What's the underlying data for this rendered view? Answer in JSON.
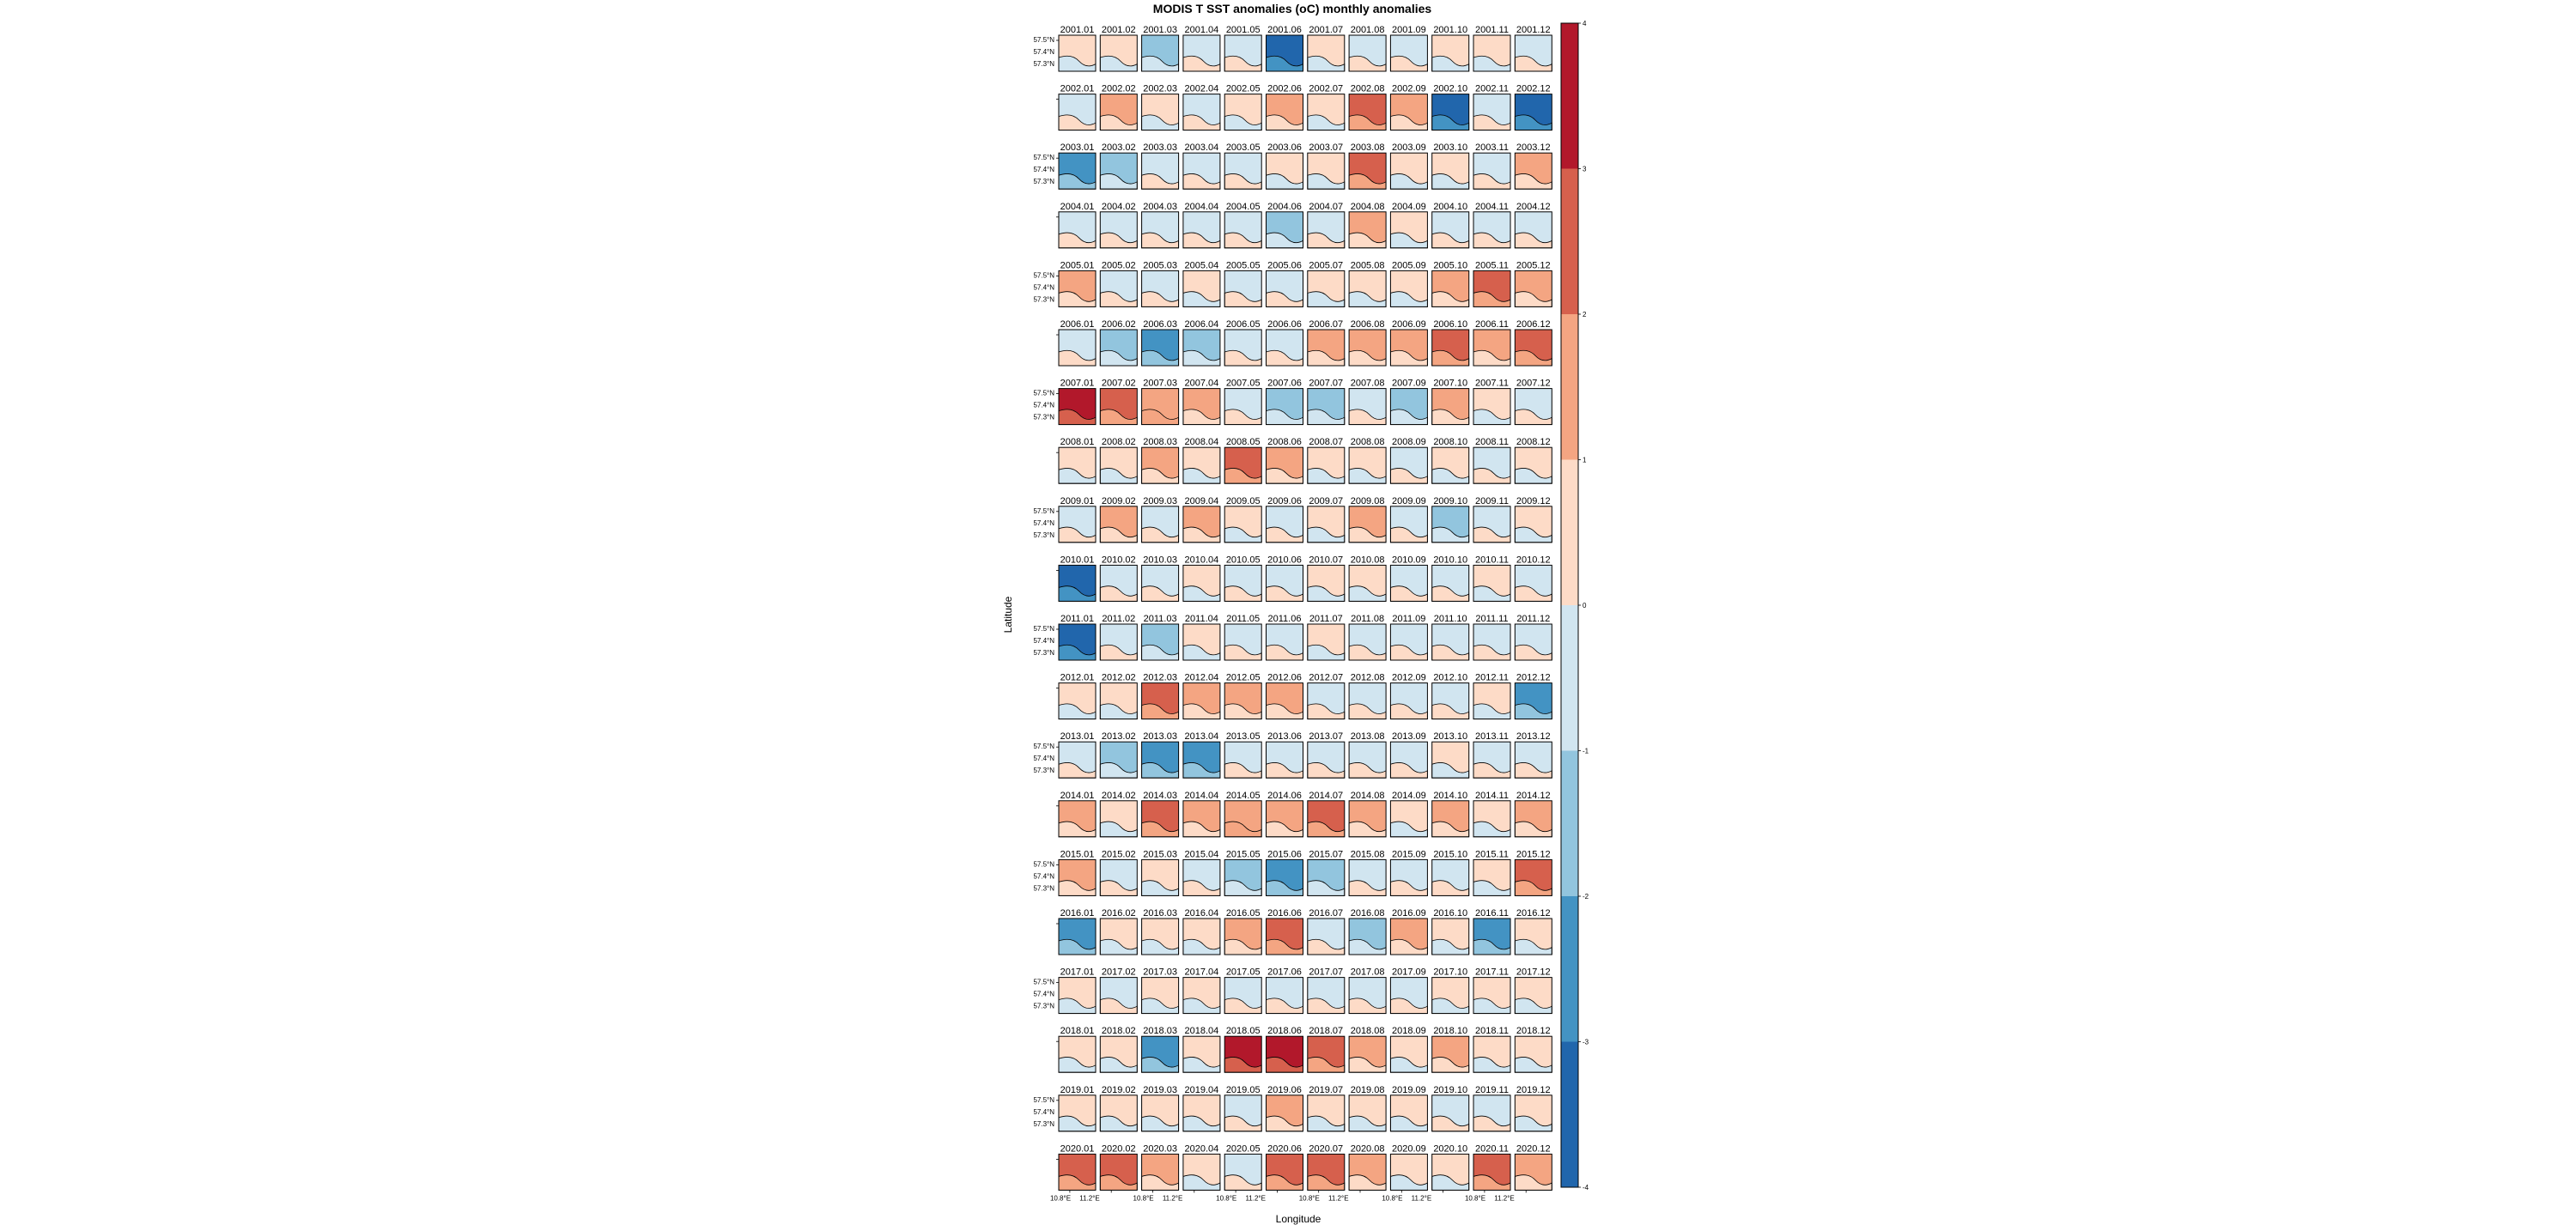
{
  "chart_data": {
    "type": "heatmap",
    "title": "MODIS T SST anomalies (oC) monthly anomalies",
    "xlabel": "Longitude",
    "ylabel": "Latitude",
    "x_tick_labels": [
      "10.8°E",
      "11.2°E"
    ],
    "y_tick_labels": [
      "57.5°N",
      "57.4°N",
      "57.3°N"
    ],
    "colorbar": {
      "ticks": [
        "4",
        "3",
        "2",
        "1",
        "0",
        "-1",
        "-2",
        "-3",
        "-4"
      ],
      "range": [
        -4,
        4
      ],
      "colors": [
        "#2166ac",
        "#4393c3",
        "#92c5de",
        "#d1e5f0",
        "#fddbc7",
        "#f4a582",
        "#d6604d",
        "#b2182b"
      ]
    },
    "years": [
      "2001",
      "2002",
      "2003",
      "2004",
      "2005",
      "2006",
      "2007",
      "2008",
      "2009",
      "2010",
      "2011",
      "2012",
      "2013",
      "2014",
      "2015",
      "2016",
      "2017",
      "2018",
      "2019",
      "2020"
    ],
    "months": [
      "01",
      "02",
      "03",
      "04",
      "05",
      "06",
      "07",
      "08",
      "09",
      "10",
      "11",
      "12"
    ],
    "anomalies": [
      [
        0.6,
        0.5,
        -1.2,
        -0.6,
        -0.4,
        -3.2,
        0.4,
        -0.3,
        -0.5,
        0.4,
        0.5,
        -0.6
      ],
      [
        -0.4,
        1.4,
        0.4,
        -0.4,
        0.4,
        1.2,
        0.6,
        2.2,
        1.2,
        -3.4,
        -0.5,
        -3.2
      ],
      [
        -2.4,
        -1.2,
        -0.4,
        -0.3,
        -0.5,
        0.4,
        0.6,
        2.4,
        0.5,
        0.6,
        -0.4,
        1.2
      ],
      [
        -0.6,
        -0.4,
        -0.3,
        -0.4,
        -0.5,
        -1.2,
        -0.5,
        1.3,
        0.4,
        -0.4,
        -0.6,
        -0.4
      ],
      [
        1.2,
        -0.5,
        -0.4,
        0.5,
        -0.4,
        -0.4,
        0.4,
        0.3,
        0.4,
        1.6,
        2.2,
        1.2
      ],
      [
        -0.5,
        -1.3,
        -2.6,
        -1.2,
        -0.4,
        -0.5,
        1.2,
        1.4,
        1.2,
        2.6,
        1.6,
        2.2
      ],
      [
        3.2,
        2.6,
        1.8,
        1.4,
        -0.4,
        -1.2,
        -1.2,
        -0.6,
        -1.2,
        1.2,
        0.6,
        -0.4
      ],
      [
        0.5,
        0.4,
        1.2,
        0.5,
        2.4,
        1.2,
        0.4,
        0.6,
        -0.4,
        0.5,
        -0.5,
        0.4
      ],
      [
        -0.4,
        1.2,
        -0.6,
        1.6,
        0.5,
        -0.4,
        0.5,
        1.2,
        -0.4,
        -1.2,
        -0.4,
        0.4
      ],
      [
        -3.6,
        -0.4,
        -0.4,
        0.4,
        -0.5,
        -0.4,
        0.4,
        0.6,
        -0.4,
        -0.4,
        0.4,
        -0.6
      ],
      [
        -3.4,
        -0.5,
        -1.2,
        0.6,
        -0.4,
        -0.5,
        0.4,
        -0.4,
        -0.6,
        -0.5,
        -0.4,
        -0.4
      ],
      [
        0.6,
        0.5,
        2.2,
        1.2,
        1.4,
        1.2,
        -0.4,
        -0.5,
        -0.4,
        -0.5,
        0.4,
        -2.4
      ],
      [
        -0.4,
        -1.2,
        -2.6,
        -2.4,
        -0.4,
        -0.5,
        -0.4,
        -0.4,
        -0.5,
        0.4,
        -0.4,
        -0.4
      ],
      [
        1.2,
        0.4,
        2.2,
        1.6,
        1.8,
        1.2,
        2.4,
        1.2,
        0.5,
        1.2,
        0.6,
        1.4
      ],
      [
        1.2,
        -0.4,
        0.6,
        -0.4,
        -1.2,
        -2.6,
        -1.4,
        -0.5,
        -0.4,
        -0.6,
        0.4,
        2.4
      ],
      [
        -2.4,
        0.5,
        0.4,
        0.4,
        1.2,
        2.2,
        -0.5,
        -1.2,
        1.6,
        0.6,
        -2.8,
        0.4
      ],
      [
        0.4,
        -0.4,
        0.6,
        0.4,
        -0.4,
        -0.5,
        -0.6,
        -0.4,
        -0.5,
        0.6,
        0.4,
        0.5
      ],
      [
        0.6,
        0.5,
        -2.2,
        0.5,
        3.2,
        3.4,
        2.4,
        1.2,
        0.5,
        1.2,
        0.6,
        0.5
      ],
      [
        0.6,
        0.4,
        0.5,
        0.4,
        -0.4,
        1.2,
        0.6,
        0.5,
        0.4,
        -0.5,
        -0.4,
        0.4
      ],
      [
        2.4,
        2.2,
        1.2,
        0.6,
        -0.5,
        2.2,
        2.4,
        1.2,
        0.5,
        0.4,
        2.2,
        1.4
      ]
    ]
  }
}
